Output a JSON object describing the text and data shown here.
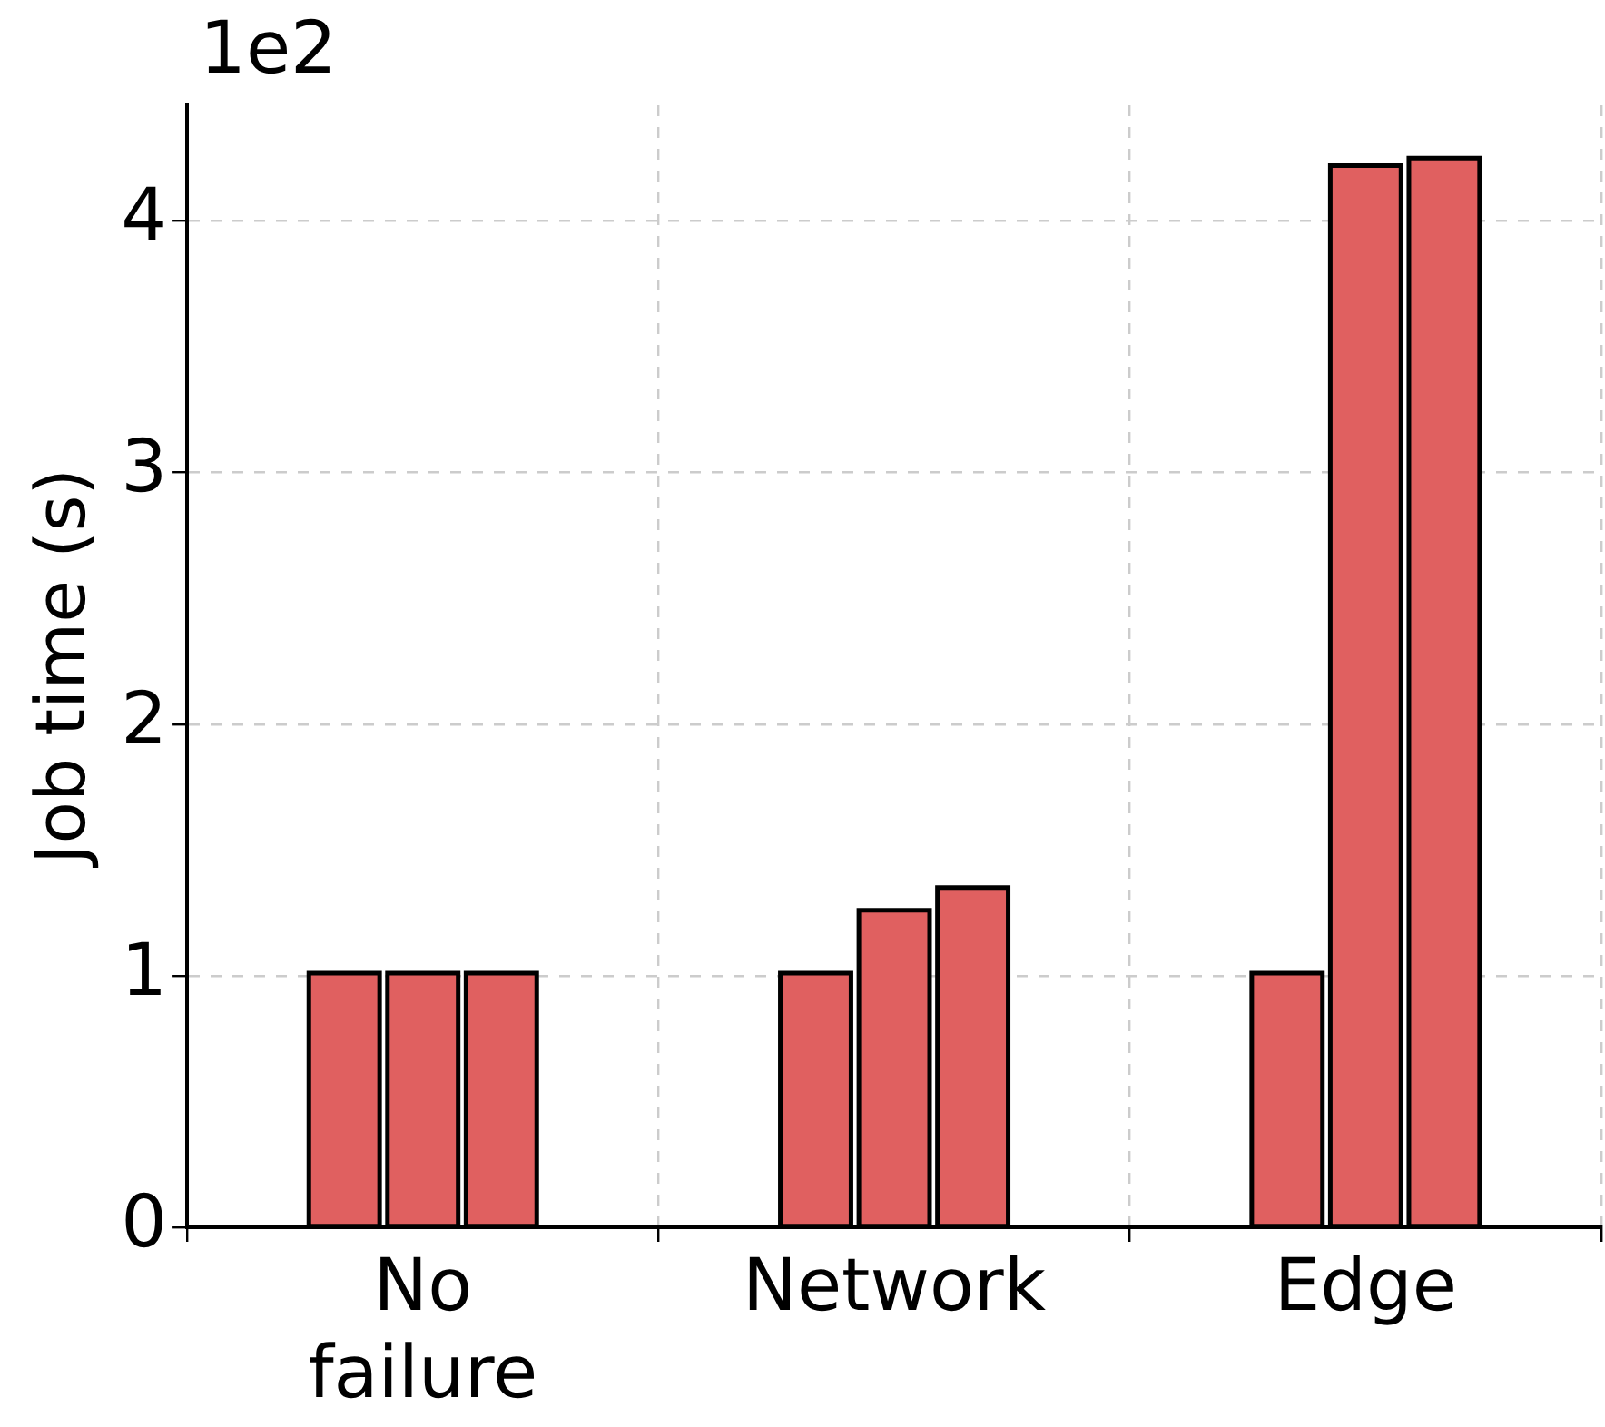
{
  "chart_data": {
    "type": "bar",
    "ylabel": "Job time (s)",
    "categories": [
      "No failure",
      "Network",
      "Edge"
    ],
    "series": [
      {
        "color": "#e06060",
        "values": [
          1.01,
          1.01,
          1.01
        ]
      },
      {
        "color": "#e06060",
        "values": [
          1.01,
          1.26,
          4.22
        ]
      },
      {
        "color": "#e06060",
        "values": [
          1.01,
          1.35,
          4.25
        ]
      }
    ],
    "ylim": [
      0,
      4.46
    ],
    "yticks": [
      0,
      1,
      2,
      3,
      4
    ],
    "grid": true,
    "annotations": [
      "1e2"
    ]
  }
}
